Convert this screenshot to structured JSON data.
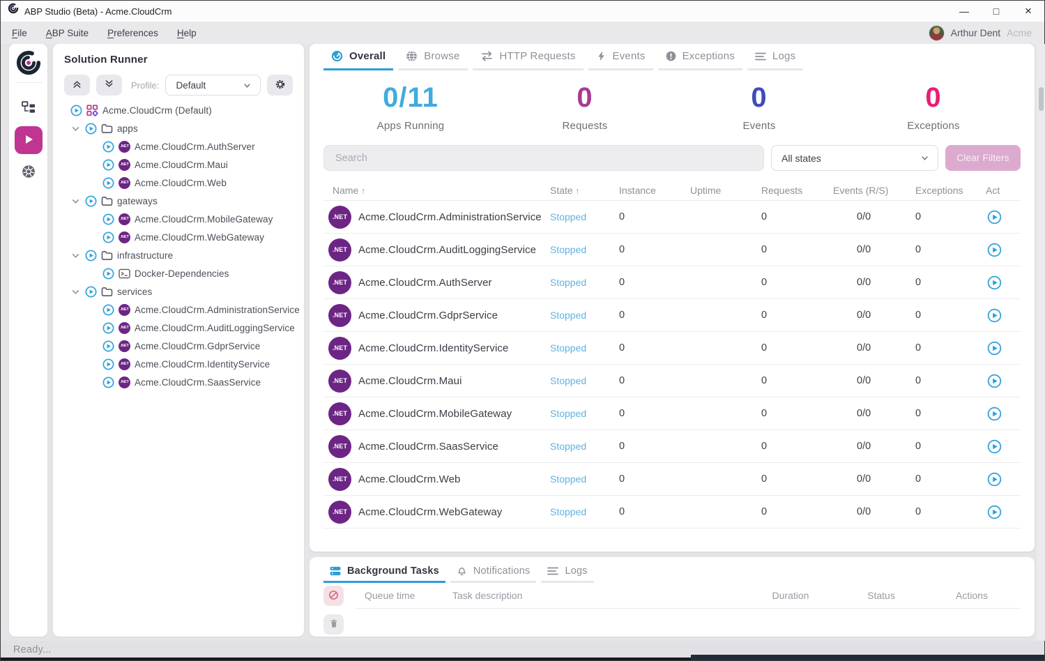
{
  "colors": {
    "accent": "#2d9ed6",
    "magenta": "#c13592",
    "stopped": "#5fb2e2",
    "netbadge": "#6d2585",
    "clearbtn": "#dcaacf"
  },
  "window": {
    "title": "ABP Studio (Beta) - Acme.CloudCrm",
    "controls": [
      "minimize",
      "maximize",
      "close"
    ]
  },
  "menu": {
    "items": [
      {
        "label": "File"
      },
      {
        "label": "ABP Suite"
      },
      {
        "label": "Preferences"
      },
      {
        "label": "Help"
      }
    ],
    "user": {
      "name": "Arthur Dent",
      "org": "Acme"
    }
  },
  "rail": {
    "items": [
      {
        "icon": "abp-logo-icon",
        "active": false
      },
      {
        "icon": "solution-explorer-icon",
        "active": false
      },
      {
        "icon": "solution-runner-icon",
        "active": true
      },
      {
        "icon": "kubernetes-icon",
        "active": false
      }
    ]
  },
  "solution_runner": {
    "title": "Solution Runner",
    "profile_label": "Profile:",
    "profile_value": "Default",
    "tree": [
      {
        "type": "solution",
        "label": "Acme.CloudCrm (Default)"
      },
      {
        "type": "folder",
        "label": "apps"
      },
      {
        "type": "dotnet",
        "label": "Acme.CloudCrm.AuthServer"
      },
      {
        "type": "dotnet",
        "label": "Acme.CloudCrm.Maui"
      },
      {
        "type": "dotnet",
        "label": "Acme.CloudCrm.Web"
      },
      {
        "type": "folder",
        "label": "gateways"
      },
      {
        "type": "dotnet",
        "label": "Acme.CloudCrm.MobileGateway"
      },
      {
        "type": "dotnet",
        "label": "Acme.CloudCrm.WebGateway"
      },
      {
        "type": "folder",
        "label": "infrastructure"
      },
      {
        "type": "docker",
        "label": "Docker-Dependencies"
      },
      {
        "type": "folder",
        "label": "services"
      },
      {
        "type": "dotnet",
        "label": "Acme.CloudCrm.AdministrationService"
      },
      {
        "type": "dotnet",
        "label": "Acme.CloudCrm.AuditLoggingService"
      },
      {
        "type": "dotnet",
        "label": "Acme.CloudCrm.GdprService"
      },
      {
        "type": "dotnet",
        "label": "Acme.CloudCrm.IdentityService"
      },
      {
        "type": "dotnet",
        "label": "Acme.CloudCrm.SaasService"
      }
    ]
  },
  "main": {
    "tabs": [
      {
        "label": "Overall",
        "icon": "gauge-icon",
        "active": true
      },
      {
        "label": "Browse",
        "icon": "globe-icon",
        "active": false
      },
      {
        "label": "HTTP Requests",
        "icon": "arrows-icon",
        "active": false
      },
      {
        "label": "Events",
        "icon": "bolt-icon",
        "active": false
      },
      {
        "label": "Exceptions",
        "icon": "exclamation-icon",
        "active": false
      },
      {
        "label": "Logs",
        "icon": "lines-icon",
        "active": false
      }
    ],
    "stats": [
      {
        "value": "0/11",
        "label": "Apps Running",
        "color": "#41aade"
      },
      {
        "value": "0",
        "label": "Requests",
        "color": "#a83a92"
      },
      {
        "value": "0",
        "label": "Events",
        "color": "#3d4cbb"
      },
      {
        "value": "0",
        "label": "Exceptions",
        "color": "#ec1b76"
      }
    ],
    "filters": {
      "search_placeholder": "Search",
      "state_filter": "All states",
      "clear_button": "Clear Filters"
    },
    "table": {
      "columns": [
        {
          "label": "Name",
          "sorted": true
        },
        {
          "label": "State",
          "sorted": true
        },
        {
          "label": "Instance"
        },
        {
          "label": "Uptime"
        },
        {
          "label": "Requests"
        },
        {
          "label": "Events (R/S)"
        },
        {
          "label": "Exceptions"
        },
        {
          "label": "Act"
        }
      ],
      "rows": [
        {
          "name": "Acme.CloudCrm.AdministrationService",
          "state": "Stopped",
          "instance": "0",
          "uptime": "",
          "requests": "0",
          "events": "0/0",
          "exceptions": "0"
        },
        {
          "name": "Acme.CloudCrm.AuditLoggingService",
          "state": "Stopped",
          "instance": "0",
          "uptime": "",
          "requests": "0",
          "events": "0/0",
          "exceptions": "0"
        },
        {
          "name": "Acme.CloudCrm.AuthServer",
          "state": "Stopped",
          "instance": "0",
          "uptime": "",
          "requests": "0",
          "events": "0/0",
          "exceptions": "0"
        },
        {
          "name": "Acme.CloudCrm.GdprService",
          "state": "Stopped",
          "instance": "0",
          "uptime": "",
          "requests": "0",
          "events": "0/0",
          "exceptions": "0"
        },
        {
          "name": "Acme.CloudCrm.IdentityService",
          "state": "Stopped",
          "instance": "0",
          "uptime": "",
          "requests": "0",
          "events": "0/0",
          "exceptions": "0"
        },
        {
          "name": "Acme.CloudCrm.Maui",
          "state": "Stopped",
          "instance": "0",
          "uptime": "",
          "requests": "0",
          "events": "0/0",
          "exceptions": "0"
        },
        {
          "name": "Acme.CloudCrm.MobileGateway",
          "state": "Stopped",
          "instance": "0",
          "uptime": "",
          "requests": "0",
          "events": "0/0",
          "exceptions": "0"
        },
        {
          "name": "Acme.CloudCrm.SaasService",
          "state": "Stopped",
          "instance": "0",
          "uptime": "",
          "requests": "0",
          "events": "0/0",
          "exceptions": "0"
        },
        {
          "name": "Acme.CloudCrm.Web",
          "state": "Stopped",
          "instance": "0",
          "uptime": "",
          "requests": "0",
          "events": "0/0",
          "exceptions": "0"
        },
        {
          "name": "Acme.CloudCrm.WebGateway",
          "state": "Stopped",
          "instance": "0",
          "uptime": "",
          "requests": "0",
          "events": "0/0",
          "exceptions": "0"
        }
      ]
    }
  },
  "bottom": {
    "tabs": [
      {
        "label": "Background Tasks",
        "icon": "stack-icon",
        "active": true
      },
      {
        "label": "Notifications",
        "icon": "bell-icon",
        "active": false
      },
      {
        "label": "Logs",
        "icon": "lines-icon",
        "active": false
      }
    ],
    "columns": [
      "Queue time",
      "Task description",
      "Duration",
      "Status",
      "Actions"
    ]
  },
  "statusbar": {
    "text": "Ready..."
  }
}
